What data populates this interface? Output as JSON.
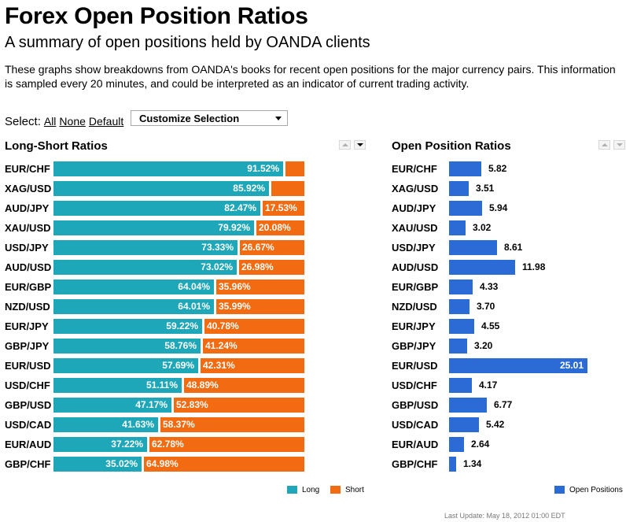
{
  "header": {
    "title": "Forex Open Position Ratios",
    "subtitle": "A summary of open positions held by OANDA clients",
    "description": "These graphs show breakdowns from OANDA's books for recent open positions for the major currency pairs. This information is sampled every 20 minutes, and could be interpreted as an indicator of current trading activity."
  },
  "select": {
    "label": "Select:",
    "all": "All",
    "none": "None",
    "default": "Default",
    "dropdown_value": "Customize Selection"
  },
  "footer": {
    "last_update": "Last Update: May 18, 2012 01:00 EDT"
  },
  "colors": {
    "long": "#1ea6b9",
    "short": "#f26b10",
    "open_positions": "#2a6bd6"
  },
  "chart_data": [
    {
      "type": "bar",
      "orientation": "horizontal-stacked",
      "title": "Long-Short Ratios",
      "categories": [
        "EUR/CHF",
        "XAG/USD",
        "AUD/JPY",
        "XAU/USD",
        "USD/JPY",
        "AUD/USD",
        "EUR/GBP",
        "NZD/USD",
        "EUR/JPY",
        "GBP/JPY",
        "EUR/USD",
        "USD/CHF",
        "GBP/USD",
        "USD/CAD",
        "EUR/AUD",
        "GBP/CHF"
      ],
      "series": [
        {
          "name": "Long",
          "values": [
            91.52,
            85.92,
            82.47,
            79.92,
            73.33,
            73.02,
            64.04,
            64.01,
            59.22,
            58.76,
            57.69,
            51.11,
            47.17,
            41.63,
            37.22,
            35.02
          ]
        },
        {
          "name": "Short",
          "values": [
            8.48,
            14.08,
            17.53,
            20.08,
            26.67,
            26.98,
            35.96,
            35.99,
            40.78,
            41.24,
            42.31,
            48.89,
            52.83,
            58.37,
            62.78,
            64.98
          ]
        }
      ],
      "long_labels": [
        "91.52%",
        "85.92%",
        "82.47%",
        "79.92%",
        "73.33%",
        "73.02%",
        "64.04%",
        "64.01%",
        "59.22%",
        "58.76%",
        "57.69%",
        "51.11%",
        "47.17%",
        "41.63%",
        "37.22%",
        "35.02%"
      ],
      "short_labels": [
        "",
        "",
        "17.53%",
        "20.08%",
        "26.67%",
        "26.98%",
        "35.96%",
        "35.99%",
        "40.78%",
        "41.24%",
        "42.31%",
        "48.89%",
        "52.83%",
        "58.37%",
        "62.78%",
        "64.98%"
      ],
      "xlim": [
        0,
        100
      ],
      "legend": "bottom-right"
    },
    {
      "type": "bar",
      "orientation": "horizontal",
      "title": "Open Position Ratios",
      "categories": [
        "EUR/CHF",
        "XAG/USD",
        "AUD/JPY",
        "XAU/USD",
        "USD/JPY",
        "AUD/USD",
        "EUR/GBP",
        "NZD/USD",
        "EUR/JPY",
        "GBP/JPY",
        "EUR/USD",
        "USD/CHF",
        "GBP/USD",
        "USD/CAD",
        "EUR/AUD",
        "GBP/CHF"
      ],
      "series": [
        {
          "name": "Open Positions",
          "values": [
            5.82,
            3.51,
            5.94,
            3.02,
            8.61,
            11.98,
            4.33,
            3.7,
            4.55,
            3.2,
            25.01,
            4.17,
            6.77,
            5.42,
            2.64,
            1.34
          ]
        }
      ],
      "value_labels": [
        "5.82",
        "3.51",
        "5.94",
        "3.02",
        "8.61",
        "11.98",
        "4.33",
        "3.70",
        "4.55",
        "3.20",
        "25.01",
        "4.17",
        "6.77",
        "5.42",
        "2.64",
        "1.34"
      ],
      "legend": "bottom-right"
    }
  ]
}
